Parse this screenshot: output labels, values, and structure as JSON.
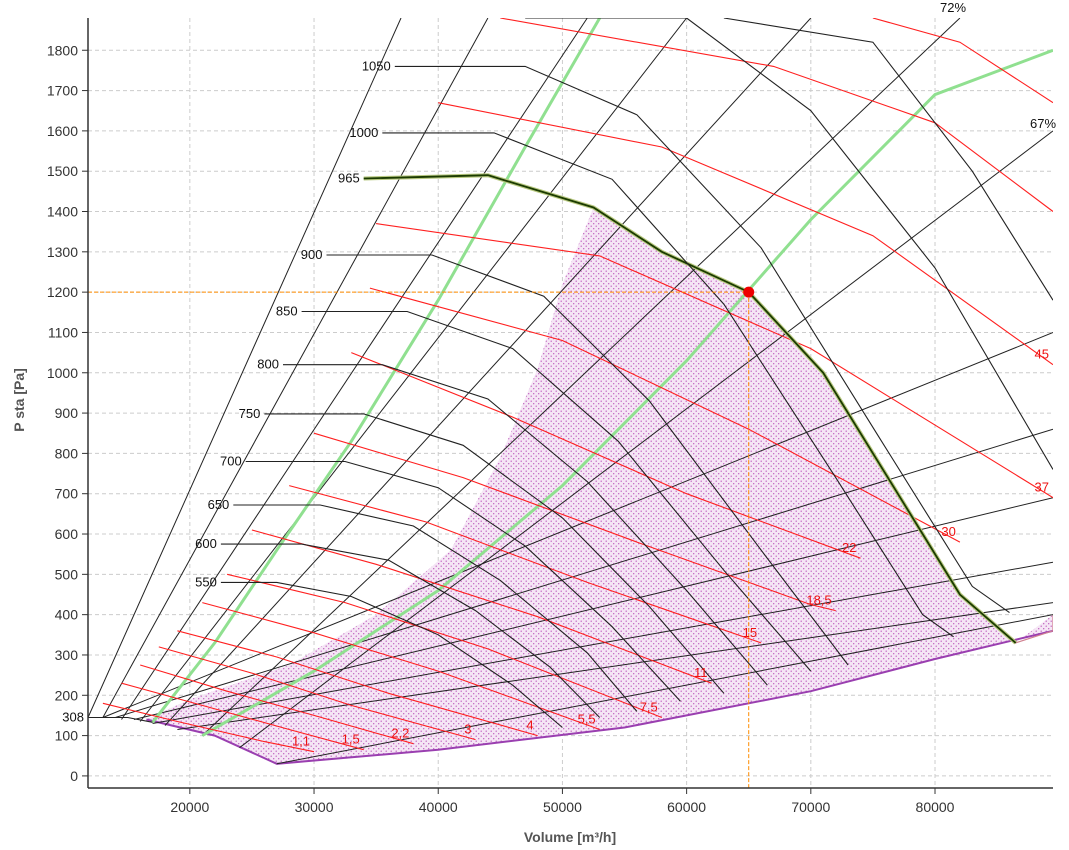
{
  "chart_data": {
    "type": "line",
    "xlabel": "Volume [m³/h]",
    "ylabel": "P sta [Pa]",
    "xlim": [
      11800,
      89500
    ],
    "ylim": [
      -30,
      1880
    ],
    "x_ticks": [
      "20000",
      "30000",
      "40000",
      "50000",
      "60000",
      "70000",
      "80000"
    ],
    "y_ticks": [
      "0",
      "100",
      "200",
      "300",
      "400",
      "500",
      "600",
      "700",
      "800",
      "900",
      "1000",
      "1100",
      "1200",
      "1300",
      "1400",
      "1500",
      "1600",
      "1700",
      "1800"
    ],
    "grid": true,
    "operating_point": {
      "volume": 65000,
      "pressure": 1200
    },
    "speed_curves": [
      {
        "label": "308",
        "points": [
          [
            11800,
            145
          ],
          [
            13000,
            145
          ],
          [
            15000,
            145
          ],
          [
            17000,
            133
          ]
        ]
      },
      {
        "label": "550",
        "points": [
          [
            22500,
            480
          ],
          [
            27000,
            480
          ],
          [
            33000,
            445
          ],
          [
            40000,
            350
          ],
          [
            46000,
            225
          ],
          [
            50000,
            120
          ]
        ]
      },
      {
        "label": "600",
        "points": [
          [
            22500,
            575
          ],
          [
            29000,
            575
          ],
          [
            36000,
            535
          ],
          [
            43000,
            410
          ],
          [
            49000,
            270
          ],
          [
            53000,
            145
          ]
        ]
      },
      {
        "label": "650",
        "points": [
          [
            23500,
            672
          ],
          [
            30500,
            672
          ],
          [
            38000,
            620
          ],
          [
            45000,
            485
          ],
          [
            52000,
            305
          ],
          [
            56000,
            160
          ]
        ]
      },
      {
        "label": "700",
        "points": [
          [
            24500,
            780
          ],
          [
            32500,
            780
          ],
          [
            40000,
            715
          ],
          [
            47000,
            570
          ],
          [
            54000,
            370
          ],
          [
            59500,
            185
          ]
        ]
      },
      {
        "label": "750",
        "points": [
          [
            26000,
            898
          ],
          [
            34000,
            898
          ],
          [
            42000,
            820
          ],
          [
            50000,
            640
          ],
          [
            57000,
            420
          ],
          [
            63000,
            205
          ]
        ]
      },
      {
        "label": "800",
        "points": [
          [
            27500,
            1020
          ],
          [
            35500,
            1020
          ],
          [
            44000,
            935
          ],
          [
            52000,
            730
          ],
          [
            60000,
            460
          ],
          [
            66500,
            225
          ]
        ]
      },
      {
        "label": "850",
        "points": [
          [
            29000,
            1152
          ],
          [
            37500,
            1152
          ],
          [
            46000,
            1060
          ],
          [
            54500,
            830
          ],
          [
            63000,
            510
          ],
          [
            70000,
            260
          ]
        ]
      },
      {
        "label": "900",
        "points": [
          [
            31000,
            1292
          ],
          [
            39500,
            1292
          ],
          [
            48500,
            1190
          ],
          [
            57000,
            930
          ],
          [
            66000,
            560
          ],
          [
            73000,
            275
          ]
        ]
      },
      {
        "label": "965",
        "points": [
          [
            34000,
            1482
          ],
          [
            38000,
            1485
          ],
          [
            44000,
            1490
          ],
          [
            52500,
            1410
          ],
          [
            58000,
            1300
          ],
          [
            65000,
            1200
          ],
          [
            71000,
            1000
          ],
          [
            77000,
            700
          ],
          [
            82000,
            450
          ],
          [
            86500,
            330
          ]
        ]
      },
      {
        "label": "1000",
        "points": [
          [
            35500,
            1595
          ],
          [
            44500,
            1595
          ],
          [
            54000,
            1480
          ],
          [
            63000,
            1170
          ],
          [
            72000,
            740
          ],
          [
            79000,
            400
          ],
          [
            81500,
            345
          ]
        ]
      },
      {
        "label": "1050",
        "points": [
          [
            36500,
            1760
          ],
          [
            47000,
            1760
          ],
          [
            56000,
            1640
          ],
          [
            66000,
            1310
          ],
          [
            75500,
            840
          ],
          [
            83000,
            470
          ],
          [
            86000,
            405
          ]
        ]
      },
      {
        "label": "",
        "points": [
          [
            47000,
            1880
          ],
          [
            60000,
            1880
          ],
          [
            70000,
            1650
          ],
          [
            80000,
            1260
          ],
          [
            89500,
            760
          ]
        ]
      },
      {
        "label": "",
        "points": [
          [
            63000,
            1880
          ],
          [
            75000,
            1820
          ],
          [
            83000,
            1500
          ],
          [
            89500,
            1180
          ]
        ]
      }
    ],
    "power_curves": [
      {
        "label": "1,1",
        "points": [
          [
            13000,
            180
          ],
          [
            19000,
            135
          ],
          [
            26000,
            85
          ],
          [
            30000,
            60
          ]
        ]
      },
      {
        "label": "1,5",
        "points": [
          [
            14500,
            230
          ],
          [
            21000,
            175
          ],
          [
            28000,
            115
          ],
          [
            34000,
            65
          ]
        ]
      },
      {
        "label": "2,2",
        "points": [
          [
            16000,
            275
          ],
          [
            23000,
            210
          ],
          [
            30000,
            150
          ],
          [
            38000,
            80
          ]
        ]
      },
      {
        "label": "3",
        "points": [
          [
            17500,
            320
          ],
          [
            25000,
            255
          ],
          [
            33000,
            175
          ],
          [
            43000,
            90
          ]
        ]
      },
      {
        "label": "4",
        "points": [
          [
            19000,
            360
          ],
          [
            27000,
            295
          ],
          [
            36000,
            205
          ],
          [
            48000,
            100
          ]
        ]
      },
      {
        "label": "5,5",
        "points": [
          [
            21000,
            430
          ],
          [
            30000,
            355
          ],
          [
            40000,
            260
          ],
          [
            53000,
            115
          ]
        ]
      },
      {
        "label": "7,5",
        "points": [
          [
            23000,
            500
          ],
          [
            32500,
            430
          ],
          [
            44000,
            315
          ],
          [
            58000,
            145
          ]
        ]
      },
      {
        "label": "11",
        "points": [
          [
            25000,
            610
          ],
          [
            35000,
            525
          ],
          [
            48000,
            395
          ],
          [
            62000,
            230
          ]
        ]
      },
      {
        "label": "15",
        "points": [
          [
            28000,
            720
          ],
          [
            39000,
            630
          ],
          [
            52000,
            480
          ],
          [
            66000,
            330
          ]
        ]
      },
      {
        "label": "18,5",
        "points": [
          [
            30000,
            850
          ],
          [
            42000,
            740
          ],
          [
            56000,
            580
          ],
          [
            70000,
            425
          ],
          [
            72000,
            410
          ]
        ]
      },
      {
        "label": "22",
        "points": [
          [
            33000,
            1050
          ],
          [
            46000,
            890
          ],
          [
            60000,
            700
          ],
          [
            74000,
            540
          ]
        ]
      },
      {
        "label": "30",
        "points": [
          [
            34500,
            1210
          ],
          [
            50000,
            1080
          ],
          [
            65000,
            860
          ],
          [
            82000,
            580
          ]
        ]
      },
      {
        "label": "37",
        "points": [
          [
            35000,
            1370
          ],
          [
            53000,
            1290
          ],
          [
            70000,
            1060
          ],
          [
            89500,
            690
          ]
        ]
      },
      {
        "label": "45",
        "points": [
          [
            40000,
            1670
          ],
          [
            58000,
            1560
          ],
          [
            75000,
            1340
          ],
          [
            89500,
            1020
          ]
        ]
      },
      {
        "label": "",
        "points": [
          [
            45000,
            1880
          ],
          [
            67000,
            1760
          ],
          [
            80000,
            1620
          ],
          [
            89500,
            1400
          ]
        ]
      },
      {
        "label": "",
        "points": [
          [
            75000,
            1880
          ],
          [
            82000,
            1820
          ],
          [
            89500,
            1670
          ]
        ]
      }
    ],
    "efficiency_rays": [
      {
        "label": "",
        "slope": 0.0
      },
      {
        "label": "",
        "slope": 0.0
      },
      {
        "label": "",
        "slope": 0.0
      },
      {
        "label": "",
        "slope": 0.0
      },
      {
        "label": "",
        "slope": 0.0
      },
      {
        "label": "67%",
        "slope": 0.0
      },
      {
        "label": "72%",
        "slope": 0.0
      }
    ]
  }
}
